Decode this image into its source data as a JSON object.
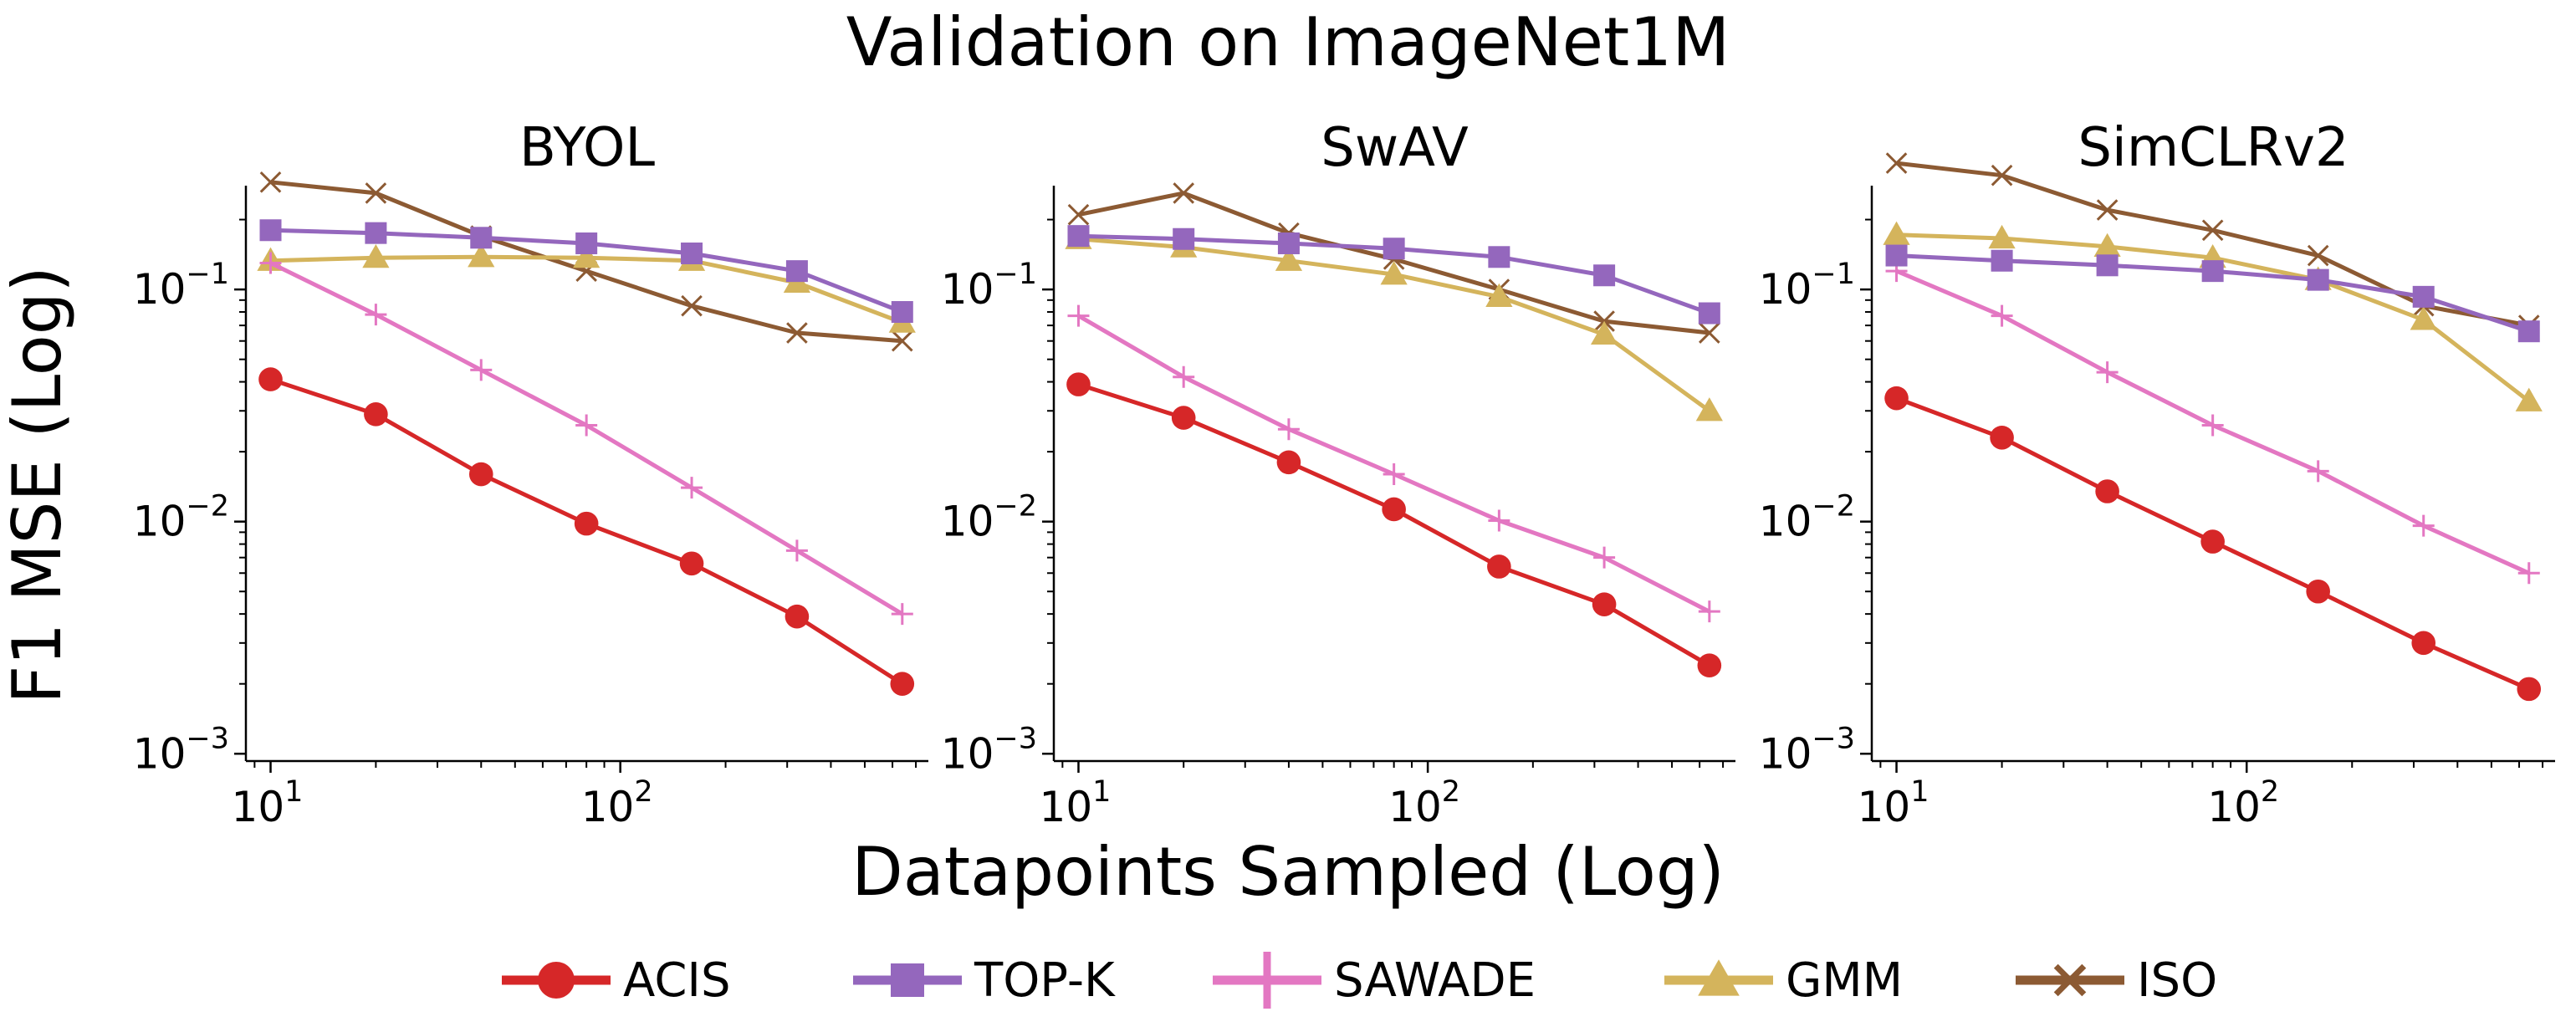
{
  "figure": {
    "title": "Validation on ImageNet1M",
    "xlabel": "Datapoints Sampled (Log)",
    "ylabel": "F1 MSE (Log)"
  },
  "legend": {
    "placement": "bottom-center",
    "items": [
      {
        "label": "ACIS",
        "color": "#d62728",
        "marker": "circle"
      },
      {
        "label": "TOP-K",
        "color": "#9467bd",
        "marker": "square"
      },
      {
        "label": "SAWADE",
        "color": "#e377c2",
        "marker": "plus"
      },
      {
        "label": "GMM",
        "color": "#d4b45c",
        "marker": "triangle"
      },
      {
        "label": "ISO",
        "color": "#8c5a33",
        "marker": "x"
      }
    ]
  },
  "chart_data": [
    {
      "type": "line",
      "title": "BYOL",
      "x": [
        10,
        20,
        40,
        80,
        160,
        320,
        640
      ],
      "xscale": "log",
      "yscale": "log",
      "xlim": [
        8.5,
        760
      ],
      "ylim": [
        0.00093,
        0.28
      ],
      "xticks": [
        10,
        100
      ],
      "yticks": [
        0.001,
        0.01,
        0.1
      ],
      "grid": false,
      "series": [
        {
          "name": "ACIS",
          "values": [
            0.041,
            0.029,
            0.016,
            0.0098,
            0.0066,
            0.0039,
            0.002
          ]
        },
        {
          "name": "TOP-K",
          "values": [
            0.18,
            0.175,
            0.167,
            0.158,
            0.143,
            0.12,
            0.08
          ]
        },
        {
          "name": "SAWADE",
          "values": [
            0.13,
            0.078,
            0.045,
            0.026,
            0.014,
            0.0075,
            0.004
          ]
        },
        {
          "name": "GMM",
          "values": [
            0.133,
            0.137,
            0.138,
            0.137,
            0.133,
            0.107,
            0.072
          ]
        },
        {
          "name": "ISO",
          "values": [
            0.29,
            0.26,
            0.17,
            0.12,
            0.085,
            0.065,
            0.06
          ]
        }
      ]
    },
    {
      "type": "line",
      "title": "SwAV",
      "x": [
        10,
        20,
        40,
        80,
        160,
        320,
        640
      ],
      "xscale": "log",
      "yscale": "log",
      "xlim": [
        8.5,
        760
      ],
      "ylim": [
        0.00093,
        0.28
      ],
      "xticks": [
        10,
        100
      ],
      "yticks": [
        0.001,
        0.01,
        0.1
      ],
      "grid": false,
      "series": [
        {
          "name": "ACIS",
          "values": [
            0.039,
            0.028,
            0.018,
            0.0113,
            0.0064,
            0.0044,
            0.0024
          ]
        },
        {
          "name": "TOP-K",
          "values": [
            0.17,
            0.165,
            0.158,
            0.15,
            0.138,
            0.115,
            0.079
          ]
        },
        {
          "name": "SAWADE",
          "values": [
            0.077,
            0.042,
            0.025,
            0.016,
            0.0101,
            0.007,
            0.0041
          ]
        },
        {
          "name": "GMM",
          "values": [
            0.165,
            0.152,
            0.133,
            0.116,
            0.093,
            0.064,
            0.03
          ]
        },
        {
          "name": "ISO",
          "values": [
            0.21,
            0.26,
            0.175,
            0.135,
            0.1,
            0.073,
            0.065
          ]
        }
      ]
    },
    {
      "type": "line",
      "title": "SimCLRv2",
      "x": [
        10,
        20,
        40,
        80,
        160,
        320,
        640
      ],
      "xscale": "log",
      "yscale": "log",
      "xlim": [
        8.5,
        760
      ],
      "ylim": [
        0.00093,
        0.28
      ],
      "xticks": [
        10,
        100
      ],
      "yticks": [
        0.001,
        0.01,
        0.1
      ],
      "grid": false,
      "series": [
        {
          "name": "ACIS",
          "values": [
            0.034,
            0.023,
            0.0135,
            0.0082,
            0.005,
            0.003,
            0.0019
          ]
        },
        {
          "name": "TOP-K",
          "values": [
            0.14,
            0.133,
            0.127,
            0.12,
            0.11,
            0.093,
            0.066
          ]
        },
        {
          "name": "SAWADE",
          "values": [
            0.12,
            0.077,
            0.044,
            0.026,
            0.0165,
            0.0096,
            0.006
          ]
        },
        {
          "name": "GMM",
          "values": [
            0.172,
            0.166,
            0.153,
            0.137,
            0.11,
            0.074,
            0.033
          ]
        },
        {
          "name": "ISO",
          "values": [
            0.35,
            0.31,
            0.22,
            0.18,
            0.14,
            0.085,
            0.07
          ]
        }
      ]
    }
  ]
}
